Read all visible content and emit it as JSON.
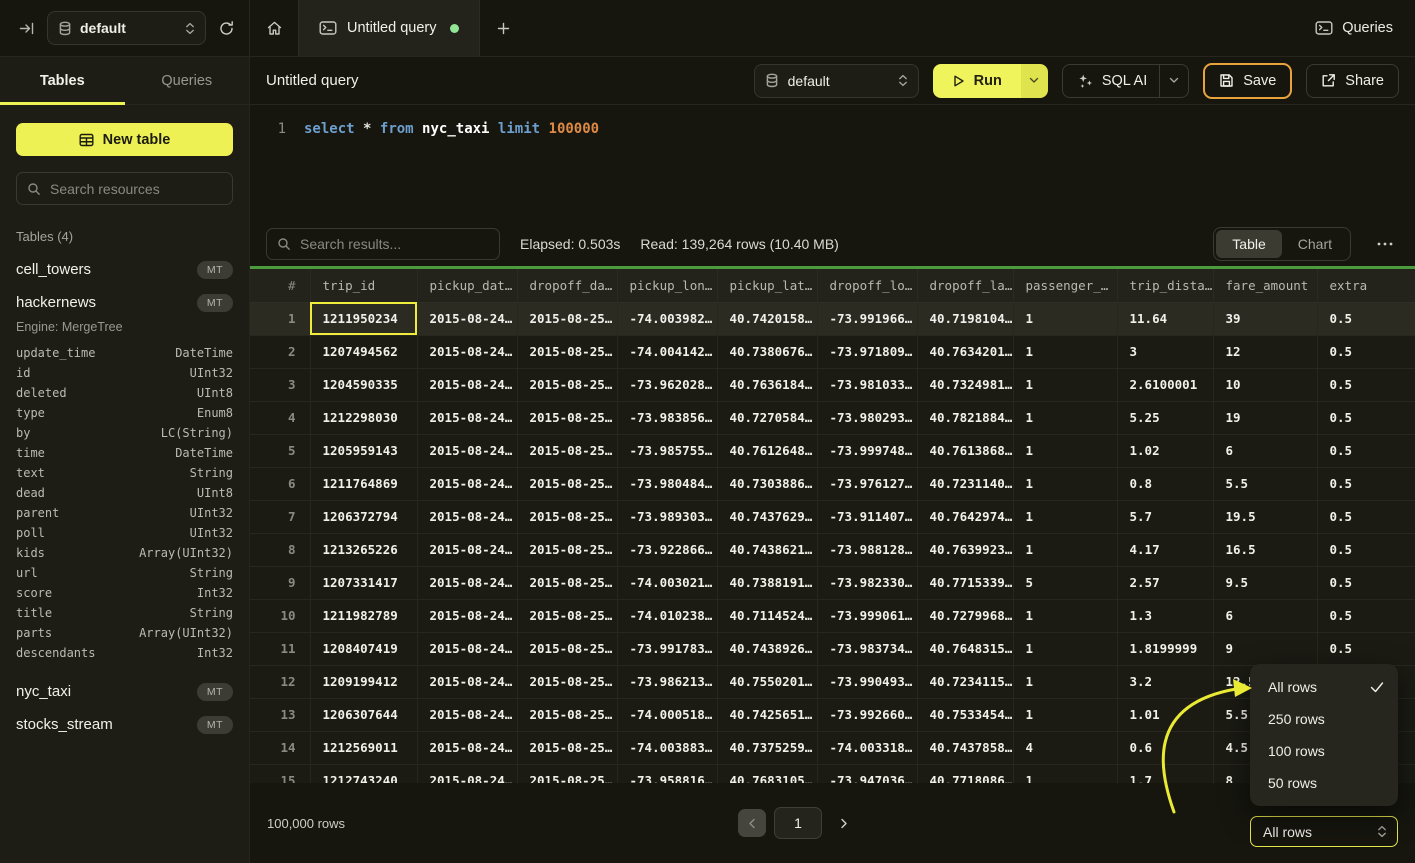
{
  "topbar": {
    "database": "default",
    "tab_title": "Untitled query",
    "queries_label": "Queries"
  },
  "sidebar": {
    "tab_tables": "Tables",
    "tab_queries": "Queries",
    "new_table": "New table",
    "search_placeholder": "Search resources",
    "section": "Tables (4)",
    "tables": [
      {
        "name": "cell_towers",
        "badge": "MT"
      },
      {
        "name": "hackernews",
        "badge": "MT",
        "engine": "Engine: MergeTree",
        "columns": [
          {
            "name": "update_time",
            "type": "DateTime"
          },
          {
            "name": "id",
            "type": "UInt32"
          },
          {
            "name": "deleted",
            "type": "UInt8"
          },
          {
            "name": "type",
            "type": "Enum8"
          },
          {
            "name": "by",
            "type": "LC(String)"
          },
          {
            "name": "time",
            "type": "DateTime"
          },
          {
            "name": "text",
            "type": "String"
          },
          {
            "name": "dead",
            "type": "UInt8"
          },
          {
            "name": "parent",
            "type": "UInt32"
          },
          {
            "name": "poll",
            "type": "UInt32"
          },
          {
            "name": "kids",
            "type": "Array(UInt32)"
          },
          {
            "name": "url",
            "type": "String"
          },
          {
            "name": "score",
            "type": "Int32"
          },
          {
            "name": "title",
            "type": "String"
          },
          {
            "name": "parts",
            "type": "Array(UInt32)"
          },
          {
            "name": "descendants",
            "type": "Int32"
          }
        ]
      },
      {
        "name": "nyc_taxi",
        "badge": "MT"
      },
      {
        "name": "stocks_stream",
        "badge": "MT"
      }
    ]
  },
  "query_header": {
    "title": "Untitled query",
    "database": "default",
    "run": "Run",
    "sql_ai": "SQL AI",
    "save": "Save",
    "share": "Share"
  },
  "editor": {
    "line_number": "1",
    "tokens": [
      {
        "text": "select",
        "cls": "kw"
      },
      {
        "text": " ",
        "cls": "pl"
      },
      {
        "text": "*",
        "cls": "pl"
      },
      {
        "text": " ",
        "cls": "pl"
      },
      {
        "text": "from",
        "cls": "kw"
      },
      {
        "text": " ",
        "cls": "pl"
      },
      {
        "text": "nyc_taxi",
        "cls": "ident"
      },
      {
        "text": " ",
        "cls": "pl"
      },
      {
        "text": "limit",
        "cls": "kw"
      },
      {
        "text": " ",
        "cls": "pl"
      },
      {
        "text": "100000",
        "cls": "num"
      }
    ]
  },
  "results": {
    "search_placeholder": "Search results...",
    "elapsed": "Elapsed: 0.503s",
    "read": "Read: 139,264 rows (10.40 MB)",
    "view_table": "Table",
    "view_chart": "Chart",
    "table": {
      "headers": [
        "#",
        "trip_id",
        "pickup_dat…",
        "dropoff_da…",
        "pickup_lon…",
        "pickup_lat…",
        "dropoff_lo…",
        "dropoff_la…",
        "passenger_…",
        "trip_dista…",
        "fare_amount",
        "extra"
      ],
      "selected_row": 1,
      "selected_cell_column": "trip_id",
      "rows": [
        [
          "1",
          "1211950234",
          "2015-08-24…",
          "2015-08-25…",
          "-74.003982…",
          "40.7420158…",
          "-73.991966…",
          "40.7198104…",
          "1",
          "11.64",
          "39",
          "0.5"
        ],
        [
          "2",
          "1207494562",
          "2015-08-24…",
          "2015-08-25…",
          "-74.004142…",
          "40.7380676…",
          "-73.971809…",
          "40.7634201…",
          "1",
          "3",
          "12",
          "0.5"
        ],
        [
          "3",
          "1204590335",
          "2015-08-24…",
          "2015-08-25…",
          "-73.962028…",
          "40.7636184…",
          "-73.981033…",
          "40.7324981…",
          "1",
          "2.6100001",
          "10",
          "0.5"
        ],
        [
          "4",
          "1212298030",
          "2015-08-24…",
          "2015-08-25…",
          "-73.983856…",
          "40.7270584…",
          "-73.980293…",
          "40.7821884…",
          "1",
          "5.25",
          "19",
          "0.5"
        ],
        [
          "5",
          "1205959143",
          "2015-08-24…",
          "2015-08-25…",
          "-73.985755…",
          "40.7612648…",
          "-73.999748…",
          "40.7613868…",
          "1",
          "1.02",
          "6",
          "0.5"
        ],
        [
          "6",
          "1211764869",
          "2015-08-24…",
          "2015-08-25…",
          "-73.980484…",
          "40.7303886…",
          "-73.976127…",
          "40.7231140…",
          "1",
          "0.8",
          "5.5",
          "0.5"
        ],
        [
          "7",
          "1206372794",
          "2015-08-24…",
          "2015-08-25…",
          "-73.989303…",
          "40.7437629…",
          "-73.911407…",
          "40.7642974…",
          "1",
          "5.7",
          "19.5",
          "0.5"
        ],
        [
          "8",
          "1213265226",
          "2015-08-24…",
          "2015-08-25…",
          "-73.922866…",
          "40.7438621…",
          "-73.988128…",
          "40.7639923…",
          "1",
          "4.17",
          "16.5",
          "0.5"
        ],
        [
          "9",
          "1207331417",
          "2015-08-24…",
          "2015-08-25…",
          "-74.003021…",
          "40.7388191…",
          "-73.982330…",
          "40.7715339…",
          "5",
          "2.57",
          "9.5",
          "0.5"
        ],
        [
          "10",
          "1211982789",
          "2015-08-24…",
          "2015-08-25…",
          "-74.010238…",
          "40.7114524…",
          "-73.999061…",
          "40.7279968…",
          "1",
          "1.3",
          "6",
          "0.5"
        ],
        [
          "11",
          "1208407419",
          "2015-08-24…",
          "2015-08-25…",
          "-73.991783…",
          "40.7438926…",
          "-73.983734…",
          "40.7648315…",
          "1",
          "1.8199999",
          "9",
          "0.5"
        ],
        [
          "12",
          "1209199412",
          "2015-08-24…",
          "2015-08-25…",
          "-73.986213…",
          "40.7550201…",
          "-73.990493…",
          "40.7234115…",
          "1",
          "3.2",
          "12.5",
          "0.5"
        ],
        [
          "13",
          "1206307644",
          "2015-08-24…",
          "2015-08-25…",
          "-74.000518…",
          "40.7425651…",
          "-73.992660…",
          "40.7533454…",
          "1",
          "1.01",
          "5.5",
          "0.5"
        ],
        [
          "14",
          "1212569011",
          "2015-08-24…",
          "2015-08-25…",
          "-74.003883…",
          "40.7375259…",
          "-74.003318…",
          "40.7437858…",
          "4",
          "0.6",
          "4.5",
          "0.5"
        ],
        [
          "15",
          "1212743240",
          "2015-08-24…",
          "2015-08-25…",
          "-73.958816…",
          "40.7683105…",
          "-73.947036…",
          "40.7718086…",
          "1",
          "1.7",
          "8",
          "0.5"
        ]
      ]
    },
    "footer": {
      "total": "100,000 rows",
      "page": "1"
    },
    "page_size_value": "All rows",
    "page_size_menu": [
      {
        "label": "All rows",
        "checked": true
      },
      {
        "label": "250 rows",
        "checked": false
      },
      {
        "label": "100 rows",
        "checked": false
      },
      {
        "label": "50 rows",
        "checked": false
      }
    ]
  },
  "colors": {
    "accent_yellow": "#eef154",
    "save_border_amber": "#e8a33c",
    "progress_green": "#4b9b3c",
    "tab_dot_green": "#90e695",
    "selection_yellow": "#f0ec3c"
  }
}
